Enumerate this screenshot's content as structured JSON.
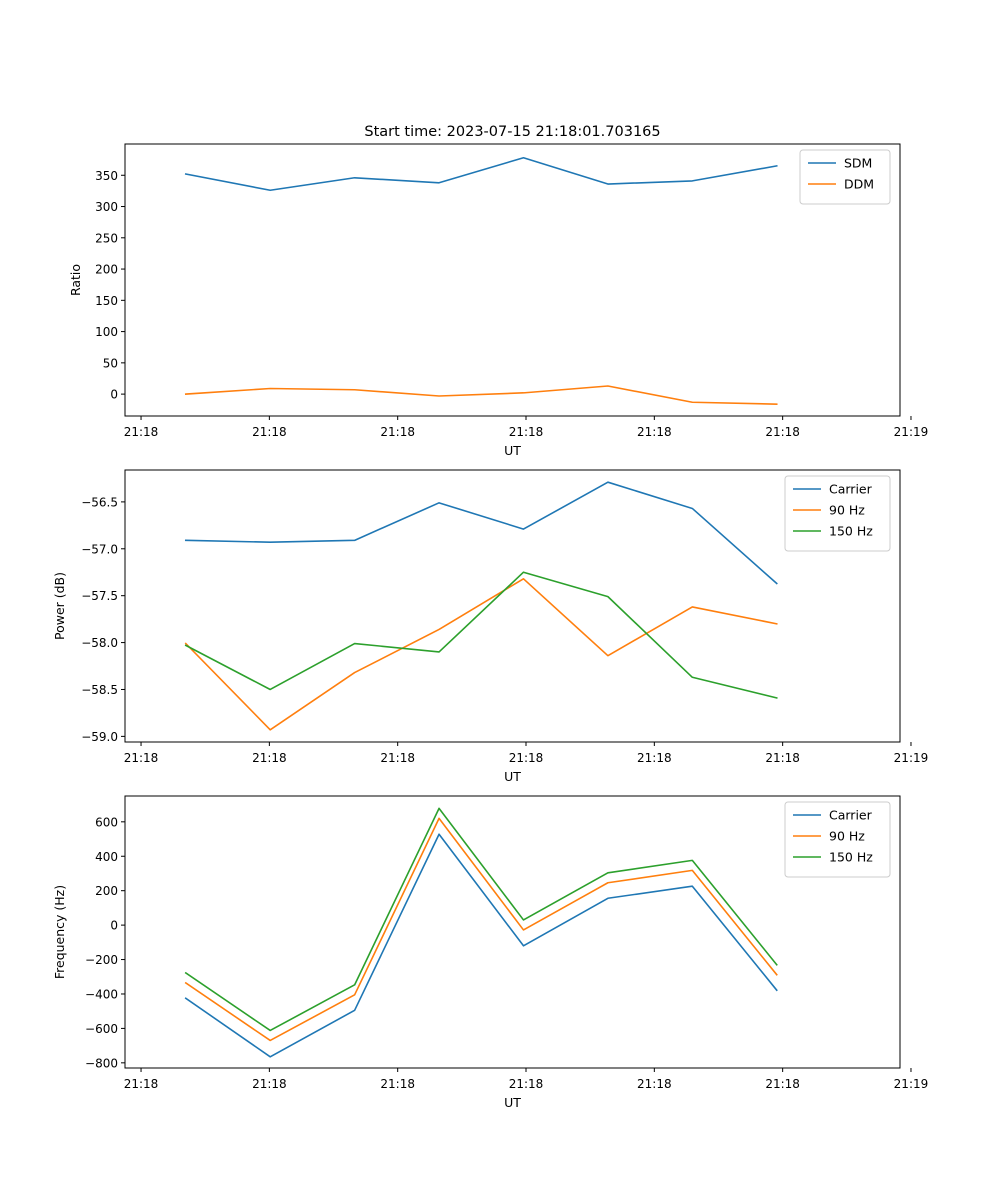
{
  "figure_title": "Start time: 2023-07-15 21:18:01.703165",
  "chart_data": [
    {
      "type": "line",
      "title": "Start time: 2023-07-15 21:18:01.703165",
      "xlabel": "UT",
      "ylabel": "Ratio",
      "x": [
        1,
        2,
        3,
        4,
        5,
        6,
        7,
        8
      ],
      "xlim": [
        0.28,
        9.46
      ],
      "x_ticks": [
        0.47,
        1.99,
        3.51,
        5.03,
        6.55,
        8.07,
        9.59
      ],
      "x_tick_labels": [
        "21:18",
        "21:18",
        "21:18",
        "21:18",
        "21:18",
        "21:18",
        "21:19"
      ],
      "ylim": [
        -35,
        400
      ],
      "y_ticks": [
        0,
        50,
        100,
        150,
        200,
        250,
        300,
        350
      ],
      "y_tick_labels": [
        "0",
        "50",
        "100",
        "150",
        "200",
        "250",
        "300",
        "350"
      ],
      "legend_position": "top-right",
      "series": [
        {
          "name": "SDM",
          "color": "#1f77b4",
          "values": [
            352,
            326,
            346,
            338,
            378,
            336,
            341,
            365
          ]
        },
        {
          "name": "DDM",
          "color": "#ff7f0e",
          "values": [
            0,
            9,
            7,
            -3,
            2,
            13,
            -13,
            -16
          ]
        }
      ]
    },
    {
      "type": "line",
      "title": "",
      "xlabel": "UT",
      "ylabel": "Power (dB)",
      "x": [
        1,
        2,
        3,
        4,
        5,
        6,
        7,
        8
      ],
      "xlim": [
        0.28,
        9.46
      ],
      "x_ticks": [
        0.47,
        1.99,
        3.51,
        5.03,
        6.55,
        8.07,
        9.59
      ],
      "x_tick_labels": [
        "21:18",
        "21:18",
        "21:18",
        "21:18",
        "21:18",
        "21:18",
        "21:19"
      ],
      "ylim": [
        -59.06,
        -56.16
      ],
      "y_ticks": [
        -59.0,
        -58.5,
        -58.0,
        -57.5,
        -57.0,
        -56.5
      ],
      "y_tick_labels": [
        "−59.0",
        "−58.5",
        "−58.0",
        "−57.5",
        "−57.0",
        "−56.5"
      ],
      "legend_position": "top-right",
      "series": [
        {
          "name": "Carrier",
          "color": "#1f77b4",
          "values": [
            -56.91,
            -56.93,
            -56.91,
            -56.51,
            -56.79,
            -56.29,
            -56.57,
            -57.37
          ]
        },
        {
          "name": "90 Hz",
          "color": "#ff7f0e",
          "values": [
            -58.01,
            -58.93,
            -58.32,
            -57.86,
            -57.32,
            -58.14,
            -57.62,
            -57.8
          ]
        },
        {
          "name": "150 Hz",
          "color": "#2ca02c",
          "values": [
            -58.03,
            -58.5,
            -58.01,
            -58.1,
            -57.25,
            -57.51,
            -58.37,
            -58.59
          ]
        }
      ]
    },
    {
      "type": "line",
      "title": "",
      "xlabel": "UT",
      "ylabel": "Frequency (Hz)",
      "x": [
        1,
        2,
        3,
        4,
        5,
        6,
        7,
        8
      ],
      "xlim": [
        0.28,
        9.46
      ],
      "x_ticks": [
        0.47,
        1.99,
        3.51,
        5.03,
        6.55,
        8.07,
        9.59
      ],
      "x_tick_labels": [
        "21:18",
        "21:18",
        "21:18",
        "21:18",
        "21:18",
        "21:18",
        "21:19"
      ],
      "ylim": [
        -830,
        750
      ],
      "y_ticks": [
        -800,
        -600,
        -400,
        -200,
        0,
        200,
        400,
        600
      ],
      "y_tick_labels": [
        "−800",
        "−600",
        "−400",
        "−200",
        "0",
        "200",
        "400",
        "600"
      ],
      "legend_position": "top-right",
      "series": [
        {
          "name": "Carrier",
          "color": "#1f77b4",
          "values": [
            -425,
            -765,
            -495,
            528,
            -120,
            156,
            226,
            -378
          ]
        },
        {
          "name": "90 Hz",
          "color": "#ff7f0e",
          "values": [
            -336,
            -670,
            -405,
            620,
            -28,
            246,
            318,
            -288
          ]
        },
        {
          "name": "150 Hz",
          "color": "#2ca02c",
          "values": [
            -278,
            -612,
            -347,
            678,
            30,
            304,
            376,
            -230
          ]
        }
      ]
    }
  ]
}
